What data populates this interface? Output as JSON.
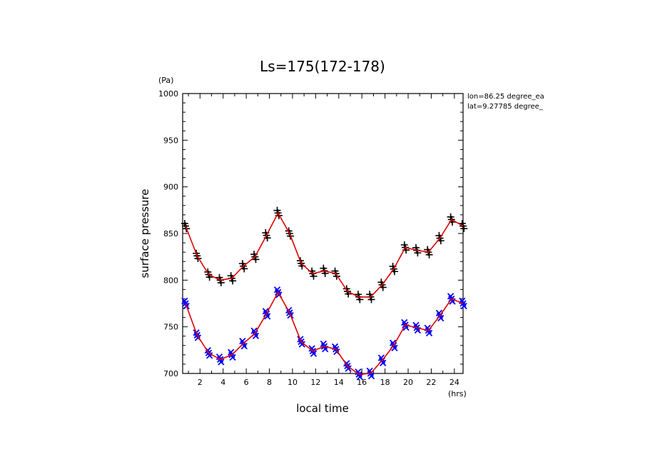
{
  "chart_data": {
    "type": "line",
    "title": "Ls=175(172-178)",
    "xlabel": "local time",
    "ylabel": "surface pressure",
    "x_unit": "(hrs)",
    "y_unit": "(Pa)",
    "xlim": [
      0.5,
      24.75
    ],
    "ylim": [
      700,
      1000
    ],
    "x_ticks": [
      "2",
      "4",
      "6",
      "8",
      "10",
      "12",
      "14",
      "16",
      "18",
      "20",
      "22",
      "24"
    ],
    "y_ticks": [
      "700",
      "750",
      "800",
      "850",
      "900",
      "950",
      "1000"
    ],
    "annotations": [
      "lon=86.25 degree_ea",
      "lat=9.27785 degree_"
    ],
    "colors": {
      "line": "#e00000",
      "upper_markers": "#000000",
      "lower_markers": "#0000ff"
    },
    "series": [
      {
        "marker": "plus",
        "x": [
          0.75,
          1.75,
          2.75,
          3.75,
          4.75,
          5.75,
          6.75,
          7.75,
          8.75,
          9.75,
          10.75,
          11.75,
          12.75,
          13.75,
          14.75,
          15.75,
          16.75,
          17.75,
          18.75,
          19.75,
          20.75,
          21.75,
          22.75,
          23.75,
          24.75
        ],
        "values": [
          858,
          826,
          806,
          800,
          802,
          815,
          825,
          848,
          872,
          850,
          818,
          807,
          810,
          807,
          788,
          782,
          782,
          795,
          812,
          835,
          832,
          830,
          845,
          865,
          858
        ]
      },
      {
        "marker": "x",
        "x": [
          0.75,
          1.75,
          2.75,
          3.75,
          4.75,
          5.75,
          6.75,
          7.75,
          8.75,
          9.75,
          10.75,
          11.75,
          12.75,
          13.75,
          14.75,
          15.75,
          16.75,
          17.75,
          18.75,
          19.75,
          20.75,
          21.75,
          22.75,
          23.75,
          24.75
        ],
        "values": [
          775,
          741,
          722,
          715,
          720,
          732,
          743,
          764,
          787,
          765,
          734,
          724,
          729,
          726,
          708,
          699,
          700,
          714,
          730,
          752,
          749,
          746,
          762,
          780,
          775
        ]
      }
    ]
  }
}
